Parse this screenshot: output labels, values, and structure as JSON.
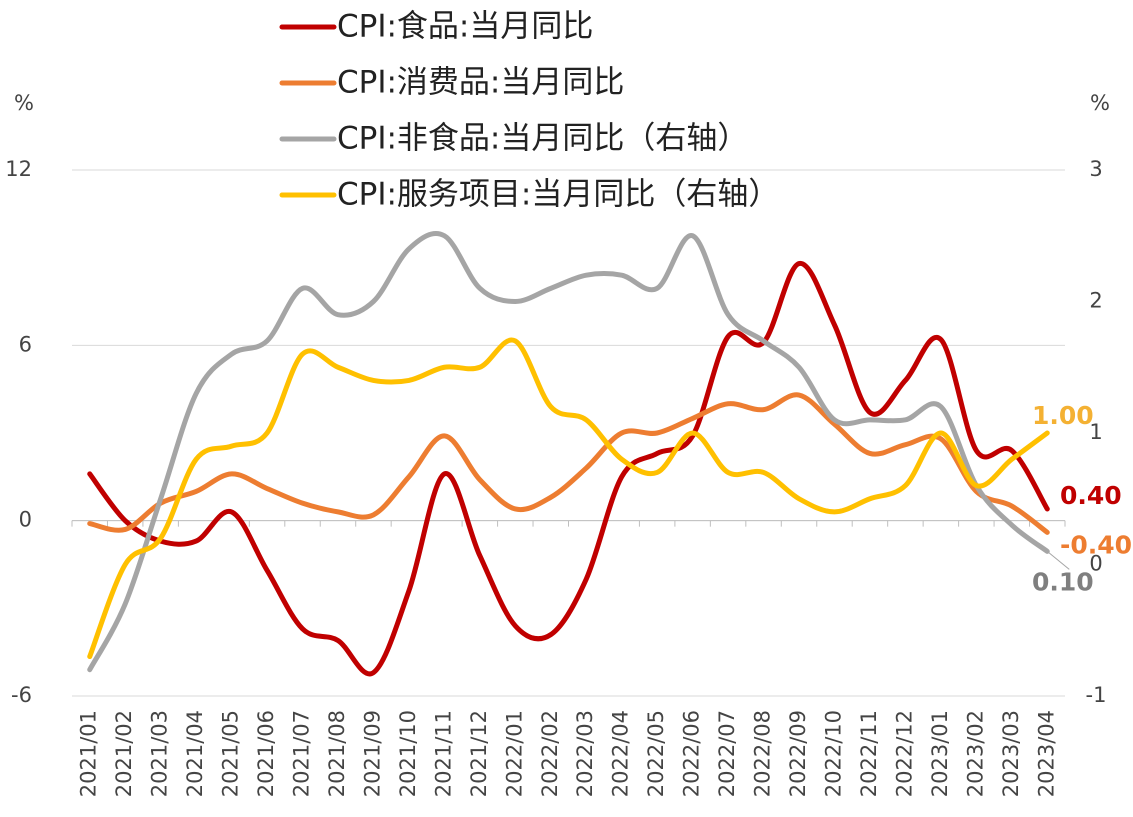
{
  "chart_data": {
    "type": "line",
    "y_label": "%",
    "y2_label": "%",
    "categories": [
      "2021/01",
      "2021/02",
      "2021/03",
      "2021/04",
      "2021/05",
      "2021/06",
      "2021/07",
      "2021/08",
      "2021/09",
      "2021/10",
      "2021/11",
      "2021/12",
      "2022/01",
      "2022/02",
      "2022/03",
      "2022/04",
      "2022/05",
      "2022/06",
      "2022/07",
      "2022/08",
      "2022/09",
      "2022/10",
      "2022/11",
      "2022/12",
      "2023/01",
      "2023/02",
      "2023/03",
      "2023/04"
    ],
    "ylim": [
      -6,
      12
    ],
    "yticks": [
      -6,
      0,
      6,
      12
    ],
    "y2lim": [
      -1,
      3
    ],
    "y2ticks": [
      -1,
      0,
      1,
      2,
      3
    ],
    "grid": true,
    "smooth": true,
    "series": [
      {
        "name": "CPI:食品:当月同比",
        "color": "#c00000",
        "values": [
          1.6,
          0,
          -0.7,
          -0.7,
          0.3,
          -1.7,
          -3.7,
          -4.1,
          -5.2,
          -2.4,
          1.6,
          -1.2,
          -3.6,
          -3.9,
          -2.0,
          1.5,
          2.3,
          2.9,
          6.3,
          6.1,
          8.8,
          6.7,
          3.7,
          4.8,
          6.2,
          2.4,
          2.4,
          0.4
        ],
        "value_labels": [
          null,
          null,
          null,
          null,
          null,
          null,
          null,
          null,
          null,
          null,
          null,
          null,
          null,
          null,
          null,
          null,
          null,
          null,
          null,
          null,
          null,
          null,
          null,
          null,
          null,
          null,
          null,
          "0.40"
        ]
      },
      {
        "name": "CPI:消费品:当月同比",
        "color": "#ed7d31",
        "values": [
          -0.1,
          -0.3,
          0.6,
          1.0,
          1.6,
          1.1,
          0.6,
          0.3,
          0.2,
          1.5,
          2.9,
          1.4,
          0.4,
          0.8,
          1.8,
          3.0,
          3.0,
          3.5,
          4.0,
          3.8,
          4.3,
          3.3,
          2.3,
          2.6,
          2.8,
          1.0,
          0.5,
          -0.4
        ],
        "value_labels": [
          null,
          null,
          null,
          null,
          null,
          null,
          null,
          null,
          null,
          null,
          null,
          null,
          null,
          null,
          null,
          null,
          null,
          null,
          null,
          null,
          null,
          null,
          null,
          null,
          null,
          null,
          null,
          "-0.40"
        ]
      },
      {
        "name": "CPI:非食品:当月同比（右轴）",
        "color": "#a5a5a5",
        "axis": "y2",
        "values": [
          -0.8,
          -0.3,
          0.5,
          1.3,
          1.6,
          1.7,
          2.1,
          1.9,
          2.0,
          2.4,
          2.5,
          2.1,
          2.0,
          2.1,
          2.2,
          2.2,
          2.1,
          2.5,
          1.9,
          1.7,
          1.5,
          1.1,
          1.1,
          1.1,
          1.2,
          0.6,
          0.3,
          0.1
        ],
        "value_labels": [
          null,
          null,
          null,
          null,
          null,
          null,
          null,
          null,
          null,
          null,
          null,
          null,
          null,
          null,
          null,
          null,
          null,
          null,
          null,
          null,
          null,
          null,
          null,
          null,
          null,
          null,
          null,
          "0.10"
        ]
      },
      {
        "name": "CPI:服务项目:当月同比（右轴）",
        "color": "#ffc000",
        "axis": "y2",
        "values": [
          -0.7,
          0.0,
          0.2,
          0.8,
          0.9,
          1.0,
          1.6,
          1.5,
          1.4,
          1.4,
          1.5,
          1.5,
          1.7,
          1.2,
          1.1,
          0.8,
          0.7,
          1.0,
          0.7,
          0.7,
          0.5,
          0.4,
          0.5,
          0.6,
          1.0,
          0.6,
          0.8,
          1.0
        ],
        "value_labels": [
          null,
          null,
          null,
          null,
          null,
          null,
          null,
          null,
          null,
          null,
          null,
          null,
          null,
          null,
          null,
          null,
          null,
          null,
          null,
          null,
          null,
          null,
          null,
          null,
          null,
          null,
          null,
          "1.00"
        ]
      }
    ]
  }
}
